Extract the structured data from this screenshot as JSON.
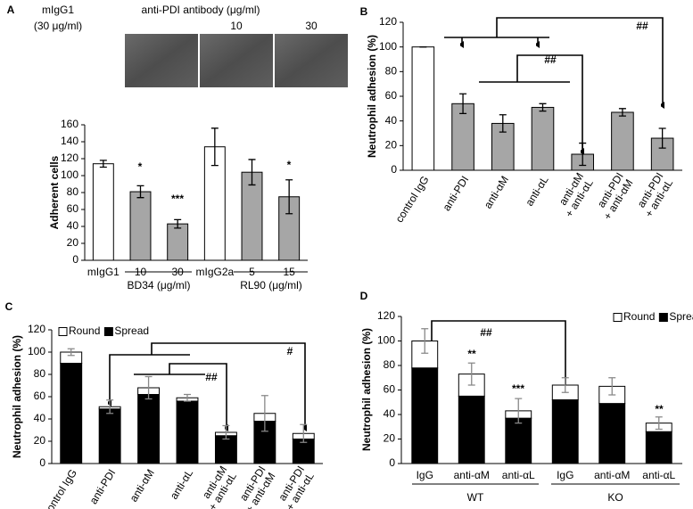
{
  "chart_data": [
    {
      "type": "bar",
      "panel": "A",
      "image_titles": [
        "mIgG1",
        "anti-PDI antibody (μg/ml)"
      ],
      "image_subtitles": [
        "(30 μg/ml)",
        "10",
        "30"
      ],
      "y_label": "Adherent cells",
      "categories": [
        "mIgG1",
        "10",
        "30",
        "mIgG2a",
        "5",
        "15"
      ],
      "values": [
        114,
        81,
        43,
        134,
        104,
        75
      ],
      "errors": [
        4,
        7,
        5,
        22,
        15,
        20
      ],
      "colors": [
        "#ffffff",
        "#a6a6a6",
        "#a6a6a6",
        "#ffffff",
        "#a6a6a6",
        "#a6a6a6"
      ],
      "groups": [
        "BD34 (μg/ml)",
        "RL90 (μg/ml)"
      ],
      "annotations": [
        "*",
        "***",
        "*"
      ],
      "ylim": [
        0,
        160
      ],
      "yticks": [
        0,
        20,
        40,
        60,
        80,
        100,
        120,
        140,
        160
      ]
    },
    {
      "type": "bar",
      "panel": "B",
      "y_label": "Neutrophil adhesion (%)",
      "categories": [
        "control IgG",
        "anti-PDI",
        "anti-αM",
        "anti-αL",
        [
          "anti-αM",
          "+ anti-αL"
        ],
        [
          "anti-PDI",
          "+ anti-αM"
        ],
        [
          "anti-PDI",
          "+ anti-αL"
        ]
      ],
      "values": [
        100,
        54,
        38,
        51,
        13,
        47,
        26
      ],
      "errors": [
        0,
        8,
        7,
        3,
        9,
        3,
        8
      ],
      "colors": [
        "#ffffff",
        "#a6a6a6",
        "#a6a6a6",
        "#a6a6a6",
        "#a6a6a6",
        "#a6a6a6",
        "#a6a6a6"
      ],
      "annotations": [
        "##",
        "##"
      ],
      "ylim": [
        0,
        120
      ],
      "yticks": [
        0,
        20,
        40,
        60,
        80,
        100,
        120
      ]
    },
    {
      "type": "stacked_bar",
      "panel": "C",
      "y_label": "Neutrophil adhesion (%)",
      "categories": [
        "control IgG",
        "anti-PDI",
        "anti-αM",
        "anti-αL",
        [
          "anti-αM",
          "+ anti-αL"
        ],
        [
          "anti-PDI",
          "+ anti-αM"
        ],
        [
          "anti-PDI",
          "+ anti-αL"
        ]
      ],
      "series": [
        {
          "name": "Spread",
          "color": "#000000",
          "values": [
            90,
            49,
            62,
            56,
            25,
            38,
            22
          ]
        },
        {
          "name": "Round",
          "color": "#ffffff",
          "values": [
            10,
            2,
            6,
            3,
            3,
            7,
            5
          ]
        }
      ],
      "errors": [
        3,
        6,
        10,
        3,
        6,
        16,
        8
      ],
      "annotations": [
        "##",
        "#"
      ],
      "ylim": [
        0,
        120
      ],
      "yticks": [
        0,
        20,
        40,
        60,
        80,
        100,
        120
      ]
    },
    {
      "type": "stacked_bar",
      "panel": "D",
      "y_label": "Neutrophil adhesion (%)",
      "categories": [
        "IgG",
        "anti-αM",
        "anti-αL",
        "IgG",
        "anti-αM",
        "anti-αL"
      ],
      "series": [
        {
          "name": "Spread",
          "color": "#000000",
          "values": [
            78,
            55,
            37,
            52,
            49,
            26
          ]
        },
        {
          "name": "Round",
          "color": "#ffffff",
          "values": [
            22,
            18,
            6,
            12,
            14,
            7
          ]
        }
      ],
      "errors": [
        10,
        9,
        10,
        6,
        7,
        5
      ],
      "groups": [
        "WT",
        "KO"
      ],
      "annotations": [
        "**",
        "***",
        "##",
        "**"
      ],
      "ylim": [
        0,
        120
      ],
      "yticks": [
        0,
        20,
        40,
        60,
        80,
        100,
        120
      ]
    }
  ]
}
